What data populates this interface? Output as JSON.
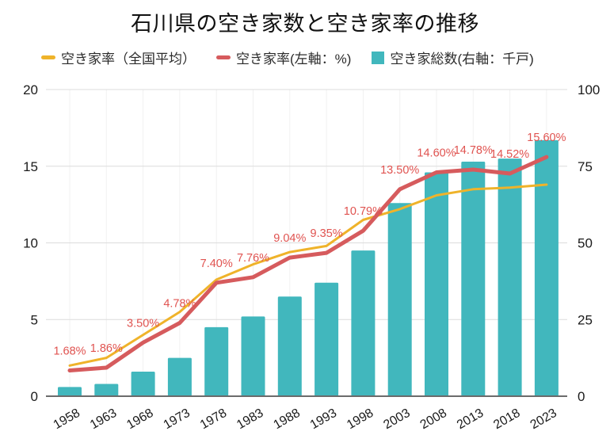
{
  "page": {
    "title": "石川県の空き家数と空き家率の推移"
  },
  "chart_data": {
    "type": "combo-bar-line",
    "title": "石川県の空き家数と空き家率の推移",
    "categories": [
      "1958",
      "1963",
      "1968",
      "1973",
      "1978",
      "1983",
      "1988",
      "1993",
      "1998",
      "2003",
      "2008",
      "2013",
      "2018",
      "2023"
    ],
    "series": [
      {
        "name": "空き家率（全国平均）",
        "type": "line",
        "axis": "left",
        "color": "#EFB32A",
        "values": [
          2.0,
          2.5,
          4.0,
          5.5,
          7.6,
          8.6,
          9.4,
          9.8,
          11.5,
          12.2,
          13.1,
          13.5,
          13.6,
          13.8
        ]
      },
      {
        "name": "空き家率(左軸：%)",
        "type": "line",
        "axis": "left",
        "color": "#D65B5D",
        "label_color": "#E05350",
        "values": [
          1.68,
          1.86,
          3.5,
          4.78,
          7.4,
          7.76,
          9.04,
          9.35,
          10.79,
          13.5,
          14.6,
          14.78,
          14.52,
          15.6
        ],
        "point_labels": [
          "1.68%",
          "1.86%",
          "3.50%",
          "4.78%",
          "7.40%",
          "7.76%",
          "9.04%",
          "9.35%",
          "10.79%",
          "13.50%",
          "14.60%",
          "14.78%",
          "14.52%",
          "15.60%"
        ]
      },
      {
        "name": "空き家総数(右軸：千戸)",
        "type": "bar",
        "axis": "right",
        "color": "#41B7BD",
        "values": [
          3,
          4,
          8,
          12.5,
          22.5,
          26,
          32.5,
          37,
          47.5,
          63,
          73,
          76.5,
          77.5,
          83.5
        ]
      }
    ],
    "left_axis": {
      "min": 0,
      "max": 20,
      "ticks": [
        "0",
        "5",
        "10",
        "15",
        "20"
      ]
    },
    "right_axis": {
      "min": 0,
      "max": 100,
      "ticks": [
        "0",
        "25",
        "50",
        "75",
        "100"
      ]
    },
    "legend_position": "top",
    "grid": true,
    "colors": {
      "gridline": "#dcdcdc",
      "vertical_gridline": "#f1f1f1",
      "axis_line": "#6b6b6b",
      "axis_text": "#1b1b1b",
      "background": "#ffffff"
    }
  }
}
